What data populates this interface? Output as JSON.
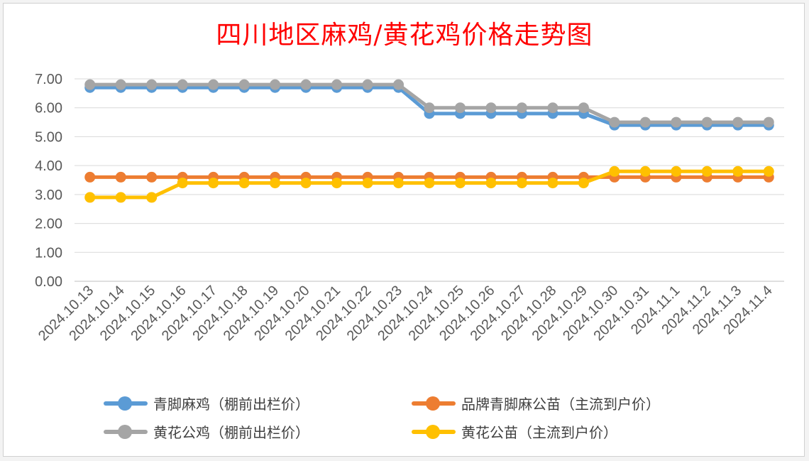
{
  "chart_data": {
    "type": "line",
    "title": "四川地区麻鸡/黄花鸡价格走势图",
    "categories": [
      "2024.10.13",
      "2024.10.14",
      "2024.10.15",
      "2024.10.16",
      "2024.10.17",
      "2024.10.18",
      "2024.10.19",
      "2024.10.20",
      "2024.10.21",
      "2024.10.22",
      "2024.10.23",
      "2024.10.24",
      "2024.10.25",
      "2024.10.26",
      "2024.10.27",
      "2024.10.28",
      "2024.10.29",
      "2024.10.30",
      "2024.10.31",
      "2024.11.1",
      "2024.11.2",
      "2024.11.3",
      "2024.11.4"
    ],
    "y_ticks": [
      "0.00",
      "1.00",
      "2.00",
      "3.00",
      "4.00",
      "5.00",
      "6.00",
      "7.00"
    ],
    "ylim": [
      0,
      7
    ],
    "grid": true,
    "legend_position": "bottom",
    "series": [
      {
        "name": "青脚麻鸡（棚前出栏价）",
        "color": "#5b9bd5",
        "values": [
          6.7,
          6.7,
          6.7,
          6.7,
          6.7,
          6.7,
          6.7,
          6.7,
          6.7,
          6.7,
          6.7,
          5.8,
          5.8,
          5.8,
          5.8,
          5.8,
          5.8,
          5.4,
          5.4,
          5.4,
          5.4,
          5.4,
          5.4
        ]
      },
      {
        "name": "品牌青脚麻公苗（主流到户价）",
        "color": "#ed7d31",
        "values": [
          3.6,
          3.6,
          3.6,
          3.6,
          3.6,
          3.6,
          3.6,
          3.6,
          3.6,
          3.6,
          3.6,
          3.6,
          3.6,
          3.6,
          3.6,
          3.6,
          3.6,
          3.6,
          3.6,
          3.6,
          3.6,
          3.6,
          3.6
        ]
      },
      {
        "name": "黄花公鸡（棚前出栏价）",
        "color": "#a5a5a5",
        "values": [
          6.8,
          6.8,
          6.8,
          6.8,
          6.8,
          6.8,
          6.8,
          6.8,
          6.8,
          6.8,
          6.8,
          6.0,
          6.0,
          6.0,
          6.0,
          6.0,
          6.0,
          5.5,
          5.5,
          5.5,
          5.5,
          5.5,
          5.5
        ]
      },
      {
        "name": "黄花公苗（主流到户价）",
        "color": "#ffc000",
        "values": [
          2.9,
          2.9,
          2.9,
          3.4,
          3.4,
          3.4,
          3.4,
          3.4,
          3.4,
          3.4,
          3.4,
          3.4,
          3.4,
          3.4,
          3.4,
          3.4,
          3.4,
          3.8,
          3.8,
          3.8,
          3.8,
          3.8,
          3.8
        ]
      }
    ]
  }
}
